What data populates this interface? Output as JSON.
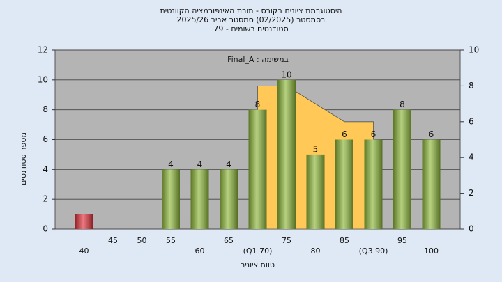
{
  "chart_data": {
    "type": "bar",
    "title": [
      "היסטוגרמת ציונים בקורס - תורת האינפורמציה הקוונטית",
      "בסמסטר  (02/2025)  סמסטר אביב 2025/26",
      "סטודנטים רשומים - 79"
    ],
    "annotation": "Final_A : במשימה",
    "xlabel": "טווח ציונים",
    "ylabel": "מספר סטודנטים",
    "categories": [
      "40",
      "45",
      "50",
      "55",
      "60",
      "65",
      "(Q1 70)",
      "75",
      "80",
      "85",
      "(Q3 90)",
      "95",
      "100"
    ],
    "values": [
      1,
      0,
      0,
      4,
      4,
      4,
      8,
      10,
      5,
      6,
      6,
      8,
      6
    ],
    "value_labels": [
      null,
      null,
      null,
      "4",
      "4",
      "4",
      "8",
      "10",
      "5",
      "6",
      "6",
      "8",
      "6"
    ],
    "colors": [
      "#e0303a",
      "#8db83a",
      "#8db83a",
      "#8db83a",
      "#8db83a",
      "#8db83a",
      "#8db83a",
      "#8db83a",
      "#8db83a",
      "#8db83a",
      "#8db83a",
      "#8db83a",
      "#8db83a"
    ],
    "area": {
      "axis": "y2",
      "color": "#ffc857",
      "values": [
        null,
        null,
        null,
        null,
        null,
        null,
        8,
        8,
        7,
        6,
        6,
        null,
        null
      ]
    },
    "ylim": [
      0,
      12
    ],
    "yticks": [
      0,
      2,
      4,
      6,
      8,
      10,
      12
    ],
    "y2lim": [
      0,
      10
    ],
    "y2ticks": [
      0,
      2,
      4,
      6,
      8,
      10
    ],
    "grid": true
  }
}
